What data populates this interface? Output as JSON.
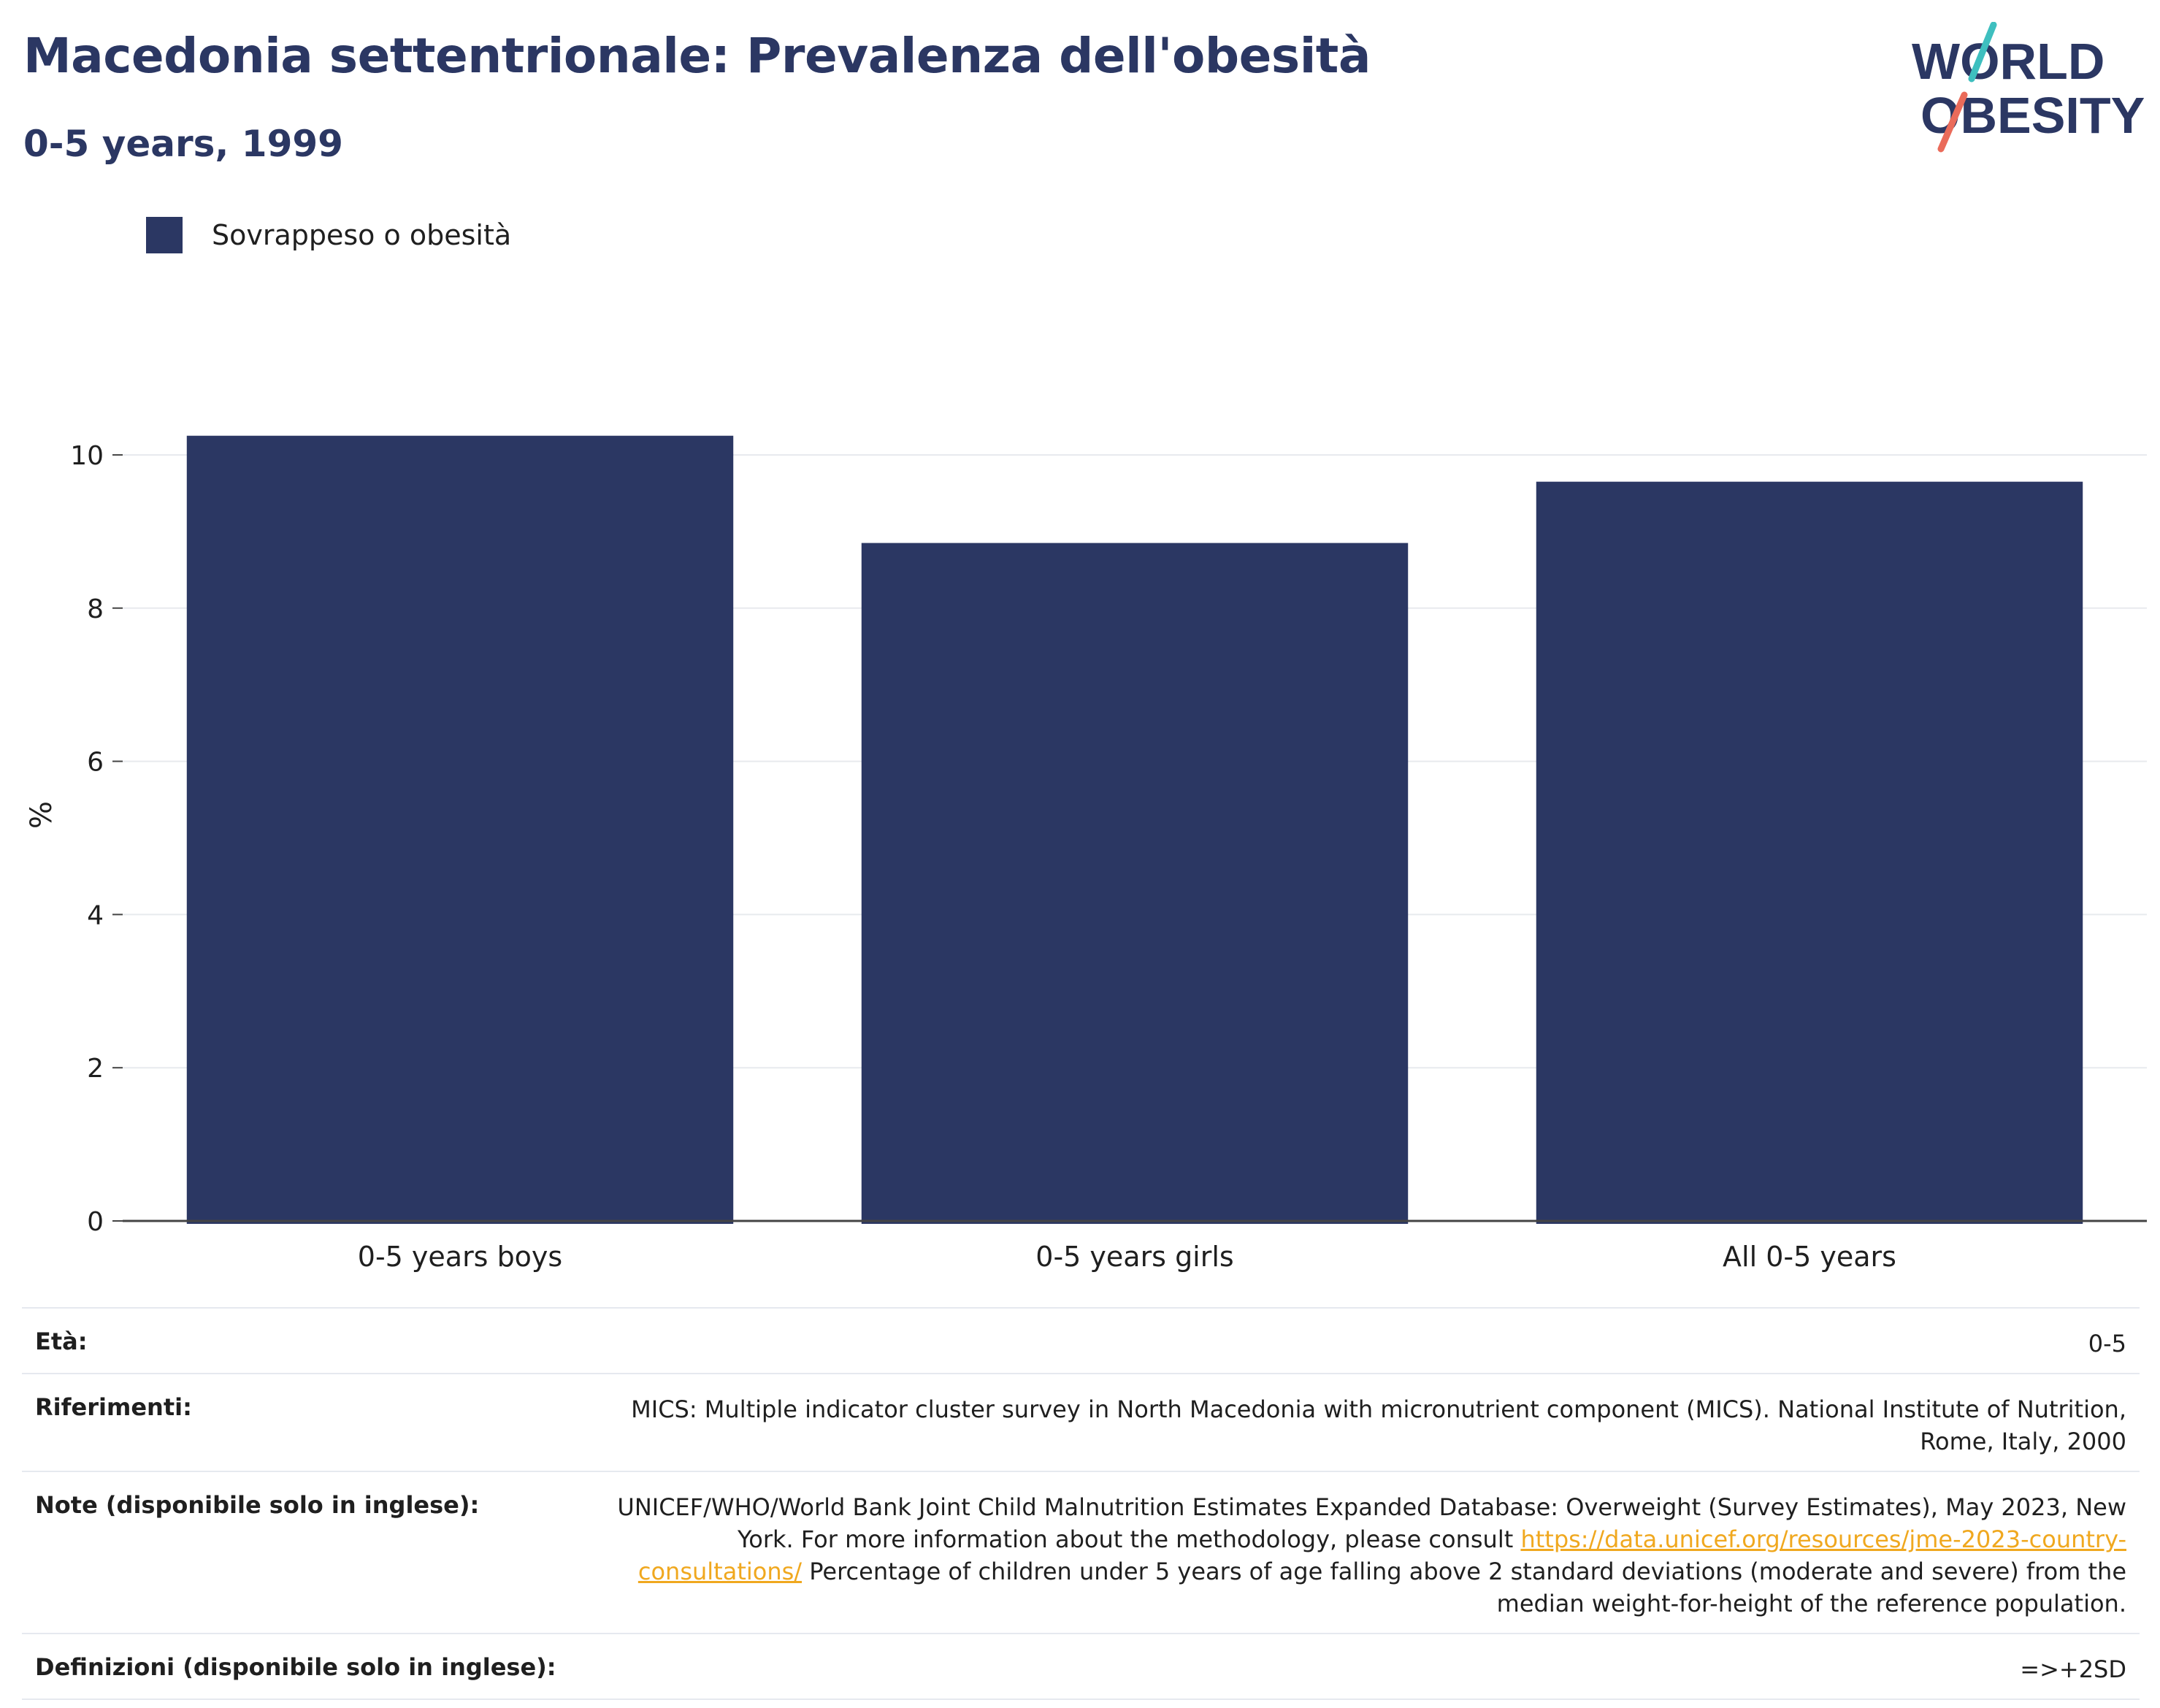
{
  "header": {
    "title": "Macedonia settentrionale: Prevalenza dell'obesità",
    "subtitle": "0-5 years, 1999"
  },
  "logo": {
    "line1": "WORLD",
    "line2": "OBESITY"
  },
  "colors": {
    "bar": "#2b3763",
    "text": "#2b3763",
    "logo_teal": "#3ebfbf",
    "logo_coral": "#ea6b5a",
    "link": "#f0a81f"
  },
  "legend": {
    "label": "Sovrappeso o obesità"
  },
  "chart_data": {
    "type": "bar",
    "categories": [
      "0-5 years boys",
      "0-5 years girls",
      "All 0-5 years"
    ],
    "series": [
      {
        "name": "Sovrappeso o obesità",
        "values": [
          10.25,
          8.85,
          9.65
        ]
      }
    ],
    "ylabel": "%",
    "ylim": [
      0,
      10.6
    ],
    "yticks": [
      0,
      2,
      4,
      6,
      8,
      10
    ],
    "grid": true,
    "legend_position": "top-left"
  },
  "meta": {
    "age_label": "Età:",
    "age_value": "0-5",
    "refs_label": "Riferimenti:",
    "refs_value": "MICS: Multiple indicator cluster survey in North Macedonia with micronutrient component (MICS). National Institute of Nutrition, Rome, Italy, 2000",
    "notes_label": "Note (disponibile solo in inglese):",
    "notes_text_1": "UNICEF/WHO/World Bank Joint Child Malnutrition Estimates Expanded Database: Overweight (Survey Estimates), May 2023, New York. For more information about the methodology, please consult ",
    "notes_link": "https://data.unicef.org/resources/jme-2023-country-consultations/",
    "notes_text_2": " Percentage of children under 5 years of age falling above 2 standard deviations (moderate and severe) from the median weight-for-height of the reference population.",
    "defs_label": "Definizioni (disponibile solo in inglese):",
    "defs_value": "=>+2SD"
  }
}
